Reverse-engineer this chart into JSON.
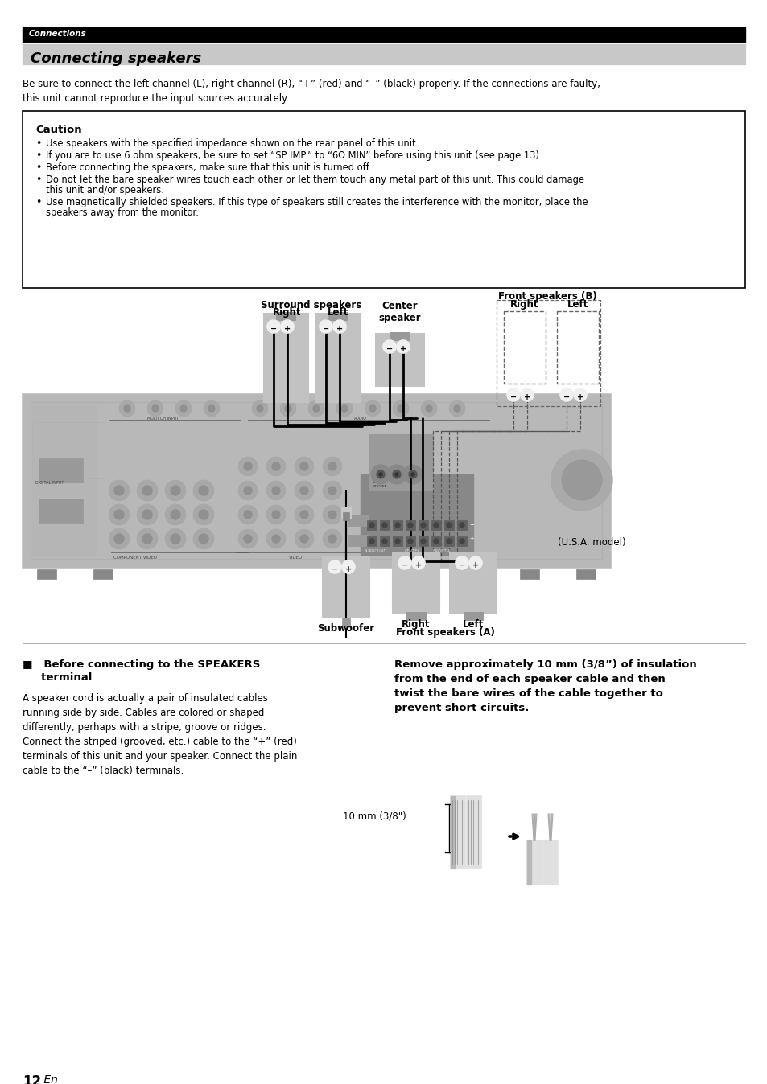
{
  "page_bg": "#ffffff",
  "header_bar_color": "#000000",
  "header_text": "Connections",
  "header_text_color": "#ffffff",
  "title_bg": "#cccccc",
  "title_text": "Connecting speakers",
  "intro_text": "Be sure to connect the left channel (L), right channel (R), “+” (red) and “–” (black) properly. If the connections are faulty,\nthis unit cannot reproduce the input sources accurately.",
  "caution_title": "Caution",
  "caution_bullets": [
    "Use speakers with the specified impedance shown on the rear panel of this unit.",
    "If you are to use 6 ohm speakers, be sure to set “SP IMP.” to “6Ω MIN” before using this unit (see page 13).",
    "Before connecting the speakers, make sure that this unit is turned off.",
    "Do not let the bare speaker wires touch each other or let them touch any metal part of this unit. This could damage\nthis unit and/or speakers.",
    "Use magnetically shielded speakers. If this type of speakers still creates the interference with the monitor, place the\nspeakers away from the monitor."
  ],
  "bottom_left_title_line1": "■   Before connecting to the SPEAKERS",
  "bottom_left_title_line2": "     terminal",
  "bottom_left_body": "A speaker cord is actually a pair of insulated cables\nrunning side by side. Cables are colored or shaped\ndifferently, perhaps with a stripe, groove or ridges.\nConnect the striped (grooved, etc.) cable to the “+” (red)\nterminals of this unit and your speaker. Connect the plain\ncable to the “–” (black) terminals.",
  "bottom_right_bold": "Remove approximately 10 mm (3/8”) of insulation\nfrom the end of each speaker cable and then\ntwist the bare wires of the cable together to\nprevent short circuits.",
  "cable_label": "10 mm (3/8\")",
  "page_number": "12",
  "page_suffix": " En",
  "surround_label": "Surround speakers",
  "surround_right": "Right",
  "surround_left": "Left",
  "center_label": "Center\nspeaker",
  "frontb_label": "Front speakers (B)",
  "frontb_right": "Right",
  "frontb_left": "Left",
  "usa_model": "(U.S.A. model)",
  "subwoofer_label": "Subwoofer",
  "fronta_right": "Right",
  "fronta_left": "Left",
  "fronta_label": "Front speakers (A)"
}
